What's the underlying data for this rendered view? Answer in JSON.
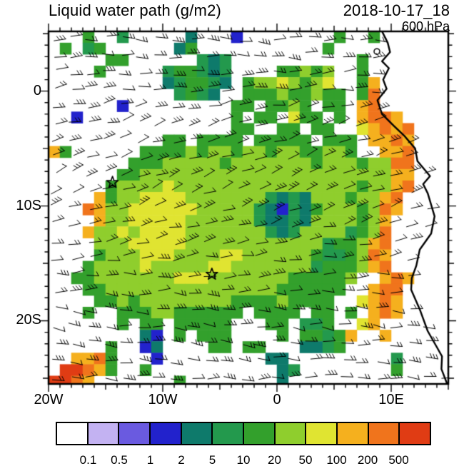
{
  "header": {
    "title": "Liquid water path (g/m2)",
    "datetime": "2018-10-17_18",
    "level": "600 hPa"
  },
  "axes": {
    "x_ticks": [
      {
        "label": "20W",
        "lon": -20
      },
      {
        "label": "10W",
        "lon": -10
      },
      {
        "label": "0",
        "lon": 0
      },
      {
        "label": "10E",
        "lon": 10
      }
    ],
    "y_ticks": [
      {
        "label": "0",
        "lat": 0
      },
      {
        "label": "10S",
        "lat": -10
      },
      {
        "label": "20S",
        "lat": -20
      }
    ]
  },
  "colorbar": {
    "labels": [
      "0.1",
      "0.5",
      "1",
      "2",
      "5",
      "10",
      "20",
      "50",
      "100",
      "200",
      "500"
    ],
    "colors": [
      "#ffffff",
      "#c3b2f2",
      "#6a5ae0",
      "#2222cc",
      "#0e7a6b",
      "#23994d",
      "#33a02c",
      "#8fce2d",
      "#e0e431",
      "#f5b01e",
      "#f0741c",
      "#e03c14"
    ]
  },
  "chart_data": {
    "type": "heatmap",
    "title": "Liquid water path (g/m2)",
    "valid_time": "2018-10-17_18",
    "pressure_level": "600 hPa",
    "units": "g/m2",
    "lon_range": [
      -20,
      15
    ],
    "lat_range": [
      -25.5,
      5.2
    ],
    "bin_edges": [
      0.1,
      0.5,
      1,
      2,
      5,
      10,
      20,
      50,
      100,
      200,
      500
    ],
    "bin_colors": [
      "#ffffff",
      "#c3b2f2",
      "#6a5ae0",
      "#2222cc",
      "#0e7a6b",
      "#23994d",
      "#33a02c",
      "#8fce2d",
      "#e0e431",
      "#f5b01e",
      "#f0741c",
      "#e03c14"
    ],
    "grid_legend": ". = <0.1 (white); 1..9,A,B = successive colorbar bins up to >500",
    "grid_lon_step_deg": 1,
    "grid_lat_step_deg": 1,
    "grid_origin": "rows north to south starting 5.2N, cols west to east starting 20W",
    "grid": [
      "...6..5.....4...3........6..6......",
      ".6.56......46...........6..........",
      ".....66......545...........6.......",
      "....6.....566545....66767..6.......",
      "..........456654.67787678..69......",
      "...........5654..666766766.6A......",
      "......3.........66.6676.66.9A......",
      "..3.............6.66.866.6.9AA9....",
      "................66..66.66..89A9A...",
      "..........66.6666.66666.666.99A9...",
      "96......6666767767767766776..99A...",
      ".......66677777677777776777677AA...",
      "......66777777777777777777777799...",
      ".....67777877777777777777776779A...",
      "....96778888777777754547776779A....",
      "...A9778888887777754354677767A9....",
      "....97788888777777544547777679.....",
      "...97787888877777775457777567A.....",
      "....7778888877777777777756679A.....",
      "....677788877778877777765567A9.....",
      "...67777877777887777777566679A.....",
      "..6677777778887777777666667..9A9...",
      "...66777777777777777666666..9AA....",
      "....667677777777666676666..89A9....",
      "...6..66677666666.6666.66.6.9A9....",
      "......6.66.66666...66.556..89......",
      "........43.6.666....6.66569..9.....",
      ".....6..34....66.66...4456.........",
      "..99A6...3.........44.........5....",
      ".BBA96..6...........45........6....",
      "BBA9.......6........4.............."
    ],
    "markers": [
      {
        "symbol": "star",
        "lon": -14.4,
        "lat": -7.95
      },
      {
        "symbol": "star",
        "lon": -5.7,
        "lat": -15.95
      }
    ],
    "overlay": "wind barbs (predominantly easterly flow)",
    "coastline": [
      [
        9.2,
        5.2
      ],
      [
        9.7,
        4.2
      ],
      [
        9.9,
        3.4
      ],
      [
        9.2,
        2.6
      ],
      [
        9.8,
        2.0
      ],
      [
        9.3,
        1.0
      ],
      [
        9.6,
        0.2
      ],
      [
        8.8,
        -0.8
      ],
      [
        9.2,
        -2.0
      ],
      [
        10.2,
        -3.0
      ],
      [
        11.2,
        -3.95
      ],
      [
        12.1,
        -5.0
      ],
      [
        12.3,
        -6.1
      ],
      [
        13.4,
        -7.4
      ],
      [
        12.8,
        -8.1
      ],
      [
        13.2,
        -8.9
      ],
      [
        13.8,
        -10.9
      ],
      [
        13.5,
        -12.4
      ],
      [
        12.5,
        -13.8
      ],
      [
        12.2,
        -15.2
      ],
      [
        11.8,
        -16.3
      ],
      [
        11.75,
        -17.3
      ],
      [
        12.5,
        -19.0
      ],
      [
        13.2,
        -20.9
      ],
      [
        14.0,
        -22.3
      ],
      [
        14.45,
        -23.1
      ],
      [
        14.4,
        -24.2
      ],
      [
        14.9,
        -25.5
      ]
    ],
    "island": {
      "lon": 8.75,
      "lat": 3.45
    }
  }
}
